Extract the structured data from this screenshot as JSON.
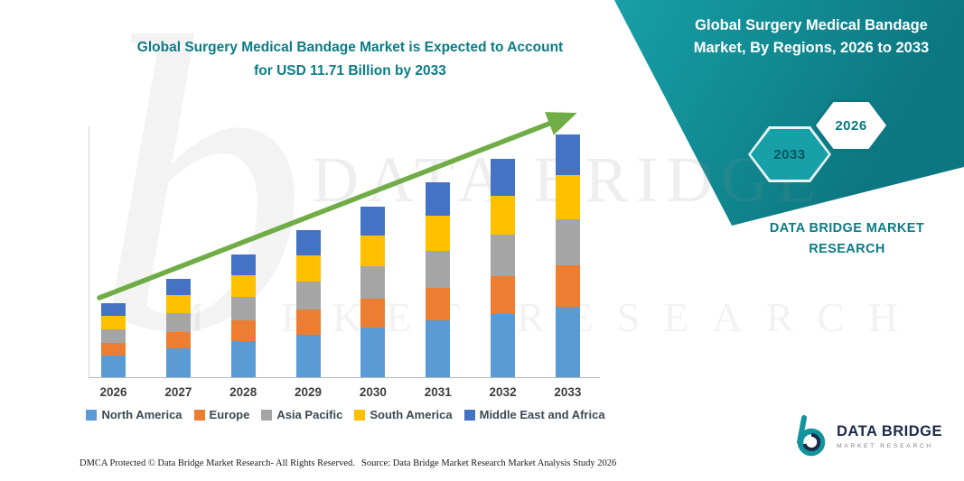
{
  "header": {
    "title_line1": "Global Surgery Medical Bandage Market is Expected to Account",
    "title_line2": "for USD 11.71 Billion by 2033"
  },
  "side_panel": {
    "heading_line1": "Global Surgery Medical Bandage",
    "heading_line2": "Market, By Regions, 2026 to 2033",
    "hex_back_year": "2033",
    "hex_front_year": "2026",
    "brand_line1": "DATA BRIDGE MARKET",
    "brand_line2": "RESEARCH"
  },
  "logo": {
    "name": "DATA BRIDGE",
    "tagline": "MARKET RESEARCH"
  },
  "watermark": {
    "letter": "b",
    "line1": "DATA BRIDGE",
    "line2": "MARKET RESEARCH"
  },
  "footer": {
    "dmca": "DMCA Protected © Data Bridge Market Research-  All Rights Reserved.",
    "source": "Source: Data Bridge Market Research  Market Analysis Study 2026"
  },
  "colors": {
    "teal": "#18A0A8",
    "teal_dark": "#0C7780",
    "title_teal": "#0C7B86",
    "arrow_green": "#70AD47",
    "legend_text": "#3B4A54",
    "logo_navy": "#1C2B4A",
    "footer_text": "#1A1A1A"
  },
  "chart_data": {
    "type": "bar",
    "stacked": true,
    "title": "Global Surgery Medical Bandage Market is Expected to Account for USD 11.71 Billion by 2033",
    "unit": "USD Billion",
    "categories": [
      "2026",
      "2027",
      "2028",
      "2029",
      "2030",
      "2031",
      "2032",
      "2033"
    ],
    "series": [
      {
        "name": "North America",
        "color": "#5B9BD5",
        "values": [
          1.04,
          1.38,
          1.72,
          2.05,
          2.39,
          2.72,
          3.06,
          3.4
        ]
      },
      {
        "name": "Europe",
        "color": "#ED7D31",
        "values": [
          0.61,
          0.81,
          1.01,
          1.2,
          1.4,
          1.6,
          1.79,
          1.99
        ]
      },
      {
        "name": "Asia Pacific",
        "color": "#A5A5A5",
        "values": [
          0.68,
          0.9,
          1.12,
          1.35,
          1.56,
          1.78,
          2.0,
          2.22
        ]
      },
      {
        "name": "South America",
        "color": "#FFC000",
        "values": [
          0.65,
          0.86,
          1.07,
          1.27,
          1.48,
          1.69,
          1.9,
          2.11
        ]
      },
      {
        "name": "Middle East and Africa",
        "color": "#4472C4",
        "values": [
          0.61,
          0.81,
          1.01,
          1.2,
          1.4,
          1.6,
          1.79,
          1.99
        ]
      }
    ],
    "totals_estimated": [
      3.6,
      4.76,
      5.92,
      7.08,
      8.23,
      9.39,
      10.55,
      11.71
    ],
    "highlight_value": "USD 11.71 Billion by 2033",
    "ylim": [
      0,
      12
    ],
    "grid": false,
    "legend_position": "bottom",
    "trend_arrow": true
  }
}
